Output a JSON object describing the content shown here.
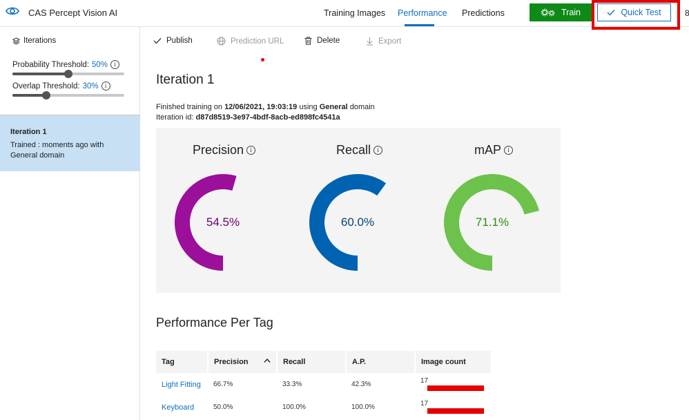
{
  "app": {
    "title": "CAS Percept Vision AI"
  },
  "nav": {
    "tabs": [
      {
        "label": "Training Images"
      },
      {
        "label": "Performance"
      },
      {
        "label": "Predictions"
      }
    ],
    "train_label": "Train",
    "quick_test_label": "Quick Test",
    "edge_char": "8"
  },
  "sidebar": {
    "iterations_label": "Iterations",
    "probability": {
      "label": "Probability Threshold:",
      "value": "50%",
      "level": 0.5
    },
    "overlap": {
      "label": "Overlap Threshold:",
      "value": "30%",
      "level": 0.3
    },
    "selected_iteration": {
      "title": "Iteration 1",
      "line1": "Trained : moments ago with",
      "line2": "General domain"
    }
  },
  "toolbar": {
    "publish": "Publish",
    "prediction_url": "Prediction URL",
    "delete": "Delete",
    "export": "Export"
  },
  "main": {
    "iteration_title": "Iteration 1",
    "finished_prefix": "Finished training on ",
    "finished_date": "12/06/2021, 19:03:19",
    "finished_mid": " using ",
    "finished_domain": "General",
    "finished_suffix": " domain",
    "iteration_id_label": "Iteration id: ",
    "iteration_id": "d87d8519-3e97-4bdf-8acb-ed898fc4541a"
  },
  "metrics": [
    {
      "title": "Precision",
      "value_text": "54.5%",
      "fraction": 0.545,
      "color": "#9b0f9b",
      "text_color": "#6b006b"
    },
    {
      "title": "Recall",
      "value_text": "60.0%",
      "fraction": 0.6,
      "color": "#0063b1",
      "text_color": "#004578"
    },
    {
      "title": "mAP",
      "value_text": "71.1%",
      "fraction": 0.711,
      "color": "#6cc24a",
      "text_color": "#2f8a14"
    }
  ],
  "per_tag": {
    "title": "Performance Per Tag",
    "headers": [
      "Tag",
      "Precision",
      "Recall",
      "A.P.",
      "Image count"
    ],
    "rows": [
      {
        "tag": "Light Fitting",
        "precision": "66.7%",
        "recall": "33.3%",
        "ap": "42.3%",
        "count": "17"
      },
      {
        "tag": "Keyboard",
        "precision": "50.0%",
        "recall": "100.0%",
        "ap": "100.0%",
        "count": "17"
      }
    ]
  }
}
